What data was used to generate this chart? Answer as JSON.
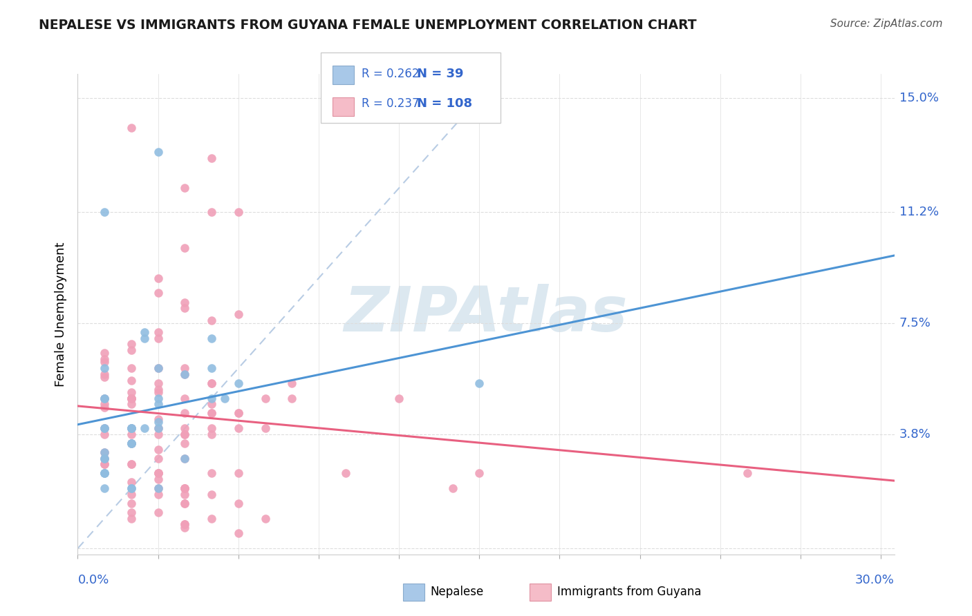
{
  "title": "NEPALESE VS IMMIGRANTS FROM GUYANA FEMALE UNEMPLOYMENT CORRELATION CHART",
  "source": "Source: ZipAtlas.com",
  "ylabel": "Female Unemployment",
  "ytick_vals": [
    0.0,
    0.038,
    0.075,
    0.112,
    0.15
  ],
  "ytick_labels": [
    "",
    "3.8%",
    "7.5%",
    "11.2%",
    "15.0%"
  ],
  "xlim": [
    0.0,
    0.305
  ],
  "ylim": [
    -0.002,
    0.158
  ],
  "R_nepalese": 0.262,
  "N_nepalese": 39,
  "R_guyana": 0.237,
  "N_guyana": 108,
  "color_nepalese": "#90bde0",
  "color_guyana": "#f0a0b8",
  "legend_color_nepalese": "#a8c8e8",
  "legend_color_guyana": "#f5bcc8",
  "regression_color_nepalese": "#4d94d4",
  "regression_color_guyana": "#e86080",
  "diag_color": "#b8cce4",
  "watermark_text": "ZIPAtlas",
  "watermark_color": "#dce8f0",
  "nepalese_x": [
    0.03,
    0.01,
    0.05,
    0.055,
    0.03,
    0.02,
    0.01,
    0.025,
    0.04,
    0.06,
    0.02,
    0.03,
    0.01,
    0.02,
    0.02,
    0.01,
    0.01,
    0.03,
    0.15,
    0.05,
    0.01,
    0.01,
    0.03,
    0.01,
    0.02,
    0.01,
    0.03,
    0.04,
    0.01,
    0.02,
    0.01,
    0.02,
    0.02,
    0.03,
    0.01,
    0.025,
    0.05,
    0.01,
    0.025
  ],
  "nepalese_y": [
    0.132,
    0.112,
    0.07,
    0.05,
    0.048,
    0.04,
    0.04,
    0.04,
    0.058,
    0.055,
    0.04,
    0.042,
    0.03,
    0.035,
    0.035,
    0.032,
    0.03,
    0.05,
    0.055,
    0.06,
    0.05,
    0.04,
    0.04,
    0.05,
    0.035,
    0.025,
    0.06,
    0.03,
    0.025,
    0.04,
    0.025,
    0.02,
    0.02,
    0.02,
    0.06,
    0.07,
    0.05,
    0.02,
    0.072
  ],
  "guyana_x": [
    0.02,
    0.05,
    0.04,
    0.06,
    0.04,
    0.03,
    0.03,
    0.04,
    0.04,
    0.06,
    0.05,
    0.03,
    0.03,
    0.02,
    0.02,
    0.01,
    0.01,
    0.01,
    0.02,
    0.03,
    0.01,
    0.04,
    0.01,
    0.02,
    0.04,
    0.02,
    0.02,
    0.03,
    0.05,
    0.02,
    0.01,
    0.01,
    0.01,
    0.08,
    0.03,
    0.05,
    0.03,
    0.02,
    0.02,
    0.04,
    0.05,
    0.08,
    0.12,
    0.02,
    0.07,
    0.06,
    0.05,
    0.06,
    0.04,
    0.03,
    0.05,
    0.03,
    0.02,
    0.01,
    0.01,
    0.02,
    0.07,
    0.06,
    0.04,
    0.05,
    0.05,
    0.04,
    0.03,
    0.04,
    0.02,
    0.04,
    0.03,
    0.01,
    0.04,
    0.03,
    0.01,
    0.01,
    0.02,
    0.02,
    0.01,
    0.03,
    0.05,
    0.03,
    0.03,
    0.03,
    0.02,
    0.06,
    0.1,
    0.15,
    0.25,
    0.03,
    0.04,
    0.04,
    0.14,
    0.04,
    0.04,
    0.02,
    0.03,
    0.05,
    0.02,
    0.06,
    0.04,
    0.04,
    0.03,
    0.02,
    0.05,
    0.02,
    0.07,
    0.04,
    0.04,
    0.04,
    0.06,
    0.05
  ],
  "guyana_y": [
    0.14,
    0.13,
    0.12,
    0.112,
    0.1,
    0.09,
    0.085,
    0.082,
    0.08,
    0.078,
    0.076,
    0.072,
    0.07,
    0.068,
    0.066,
    0.065,
    0.063,
    0.062,
    0.06,
    0.06,
    0.058,
    0.058,
    0.057,
    0.056,
    0.06,
    0.05,
    0.052,
    0.055,
    0.055,
    0.05,
    0.05,
    0.048,
    0.047,
    0.055,
    0.053,
    0.055,
    0.052,
    0.05,
    0.05,
    0.05,
    0.048,
    0.05,
    0.05,
    0.048,
    0.05,
    0.045,
    0.045,
    0.045,
    0.045,
    0.043,
    0.045,
    0.04,
    0.04,
    0.04,
    0.038,
    0.038,
    0.04,
    0.04,
    0.04,
    0.04,
    0.038,
    0.038,
    0.038,
    0.038,
    0.035,
    0.035,
    0.033,
    0.032,
    0.03,
    0.03,
    0.03,
    0.028,
    0.028,
    0.028,
    0.028,
    0.025,
    0.025,
    0.025,
    0.025,
    0.023,
    0.022,
    0.025,
    0.025,
    0.025,
    0.025,
    0.02,
    0.02,
    0.02,
    0.02,
    0.02,
    0.018,
    0.018,
    0.018,
    0.018,
    0.015,
    0.015,
    0.015,
    0.015,
    0.012,
    0.012,
    0.01,
    0.01,
    0.01,
    0.008,
    0.008,
    0.007,
    0.005,
    0.112
  ]
}
